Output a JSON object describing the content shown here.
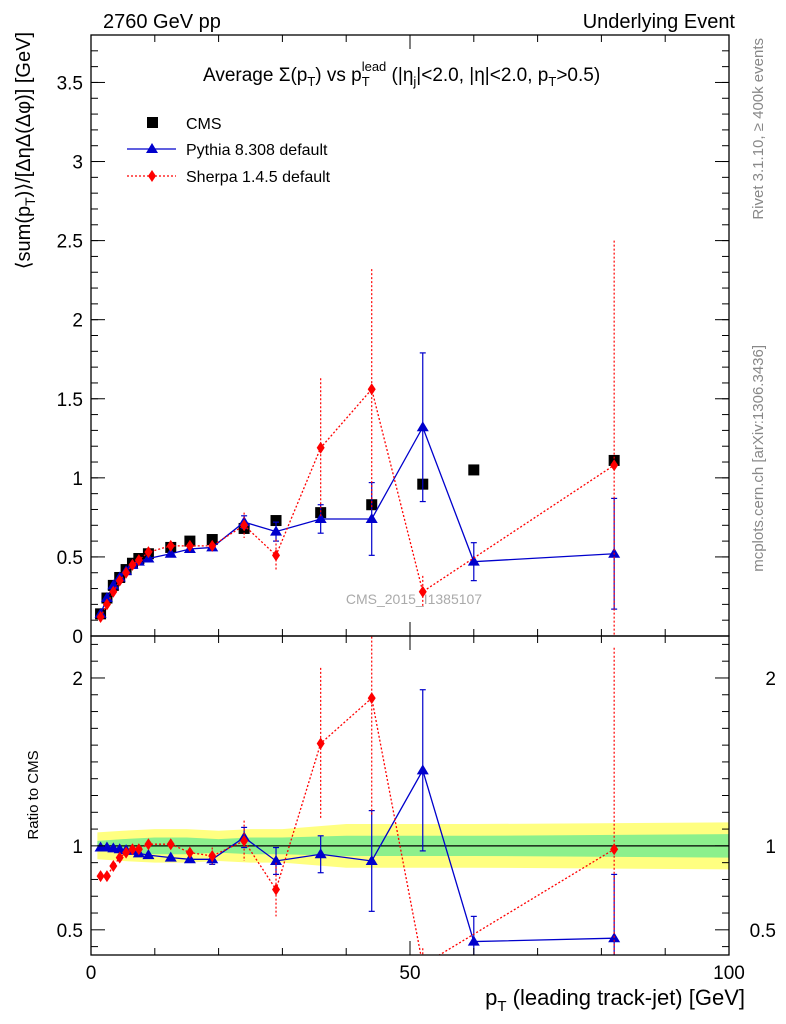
{
  "header": {
    "left": "2760 GeV pp",
    "right": "Underlying Event"
  },
  "side_labels": {
    "rivet": "Rivet 3.1.10, ≥ 400k events",
    "mcplots": "mcplots.cern.ch [arXiv:1306.3436]"
  },
  "watermark": "CMS_2015_I1385107",
  "chart_data": [
    {
      "type": "scatter",
      "title": "Average Σ(pT) vs pT lead (|ηj|<2.0, |η|<2.0, pT>0.5)",
      "ylabel": "⟨sum(pT)⟩/[ΔηΔ(Δφ)] [GeV]",
      "xlabel": "pT (leading track-jet) [GeV]",
      "xlim": [
        0,
        100
      ],
      "ylim": [
        0,
        3.8
      ],
      "y_ticks": [
        "0",
        "0.5",
        "1",
        "1.5",
        "2",
        "2.5",
        "3",
        "3.5"
      ],
      "x_ticks": [
        "0",
        "50",
        "100"
      ],
      "legend": [
        "CMS",
        "Pythia 8.308 default",
        "Sherpa 1.4.5 default"
      ],
      "legend_position": "top-left",
      "series": [
        {
          "name": "CMS",
          "color": "#000000",
          "marker": "square",
          "x": [
            1.5,
            2.5,
            3.5,
            4.5,
            5.5,
            6.5,
            7.5,
            9.0,
            12.5,
            15.5,
            19.0,
            24.0,
            29.0,
            36.0,
            44.0,
            52.0,
            60.0,
            82.0
          ],
          "y": [
            0.14,
            0.24,
            0.32,
            0.37,
            0.42,
            0.46,
            0.49,
            0.52,
            0.56,
            0.6,
            0.61,
            0.68,
            0.73,
            0.78,
            0.83,
            0.96,
            1.05,
            1.11
          ]
        },
        {
          "name": "Pythia 8.308 default",
          "color": "#0000cc",
          "marker": "triangle",
          "line": "solid",
          "x": [
            1.5,
            2.5,
            3.5,
            4.5,
            5.5,
            6.5,
            7.5,
            9.0,
            12.5,
            15.5,
            19.0,
            24.0,
            29.0,
            36.0,
            44.0,
            52.0,
            60.0,
            82.0
          ],
          "y": [
            0.14,
            0.24,
            0.32,
            0.37,
            0.41,
            0.45,
            0.47,
            0.49,
            0.52,
            0.55,
            0.56,
            0.72,
            0.66,
            0.74,
            0.74,
            1.32,
            0.47,
            0.52
          ],
          "err": [
            0.005,
            0.005,
            0.005,
            0.005,
            0.005,
            0.005,
            0.01,
            0.01,
            0.01,
            0.01,
            0.015,
            0.04,
            0.06,
            0.09,
            0.23,
            0.47,
            0.12,
            0.35
          ]
        },
        {
          "name": "Sherpa 1.4.5 default",
          "color": "#ff0000",
          "marker": "diamond",
          "line": "dotted",
          "x": [
            1.5,
            2.5,
            3.5,
            4.5,
            5.5,
            6.5,
            7.5,
            9.0,
            12.5,
            15.5,
            19.0,
            24.0,
            29.0,
            36.0,
            44.0,
            52.0,
            82.0
          ],
          "y": [
            0.12,
            0.2,
            0.28,
            0.35,
            0.4,
            0.45,
            0.48,
            0.53,
            0.57,
            0.57,
            0.57,
            0.7,
            0.51,
            1.19,
            1.56,
            0.28,
            1.08
          ],
          "err": [
            0.005,
            0.005,
            0.005,
            0.005,
            0.005,
            0.01,
            0.01,
            0.01,
            0.02,
            0.02,
            0.03,
            0.08,
            0.1,
            0.44,
            0.76,
            0.1,
            1.42
          ]
        }
      ]
    },
    {
      "type": "scatter",
      "ylabel": "Ratio to CMS",
      "xlabel": "pT (leading track-jet) [GeV]",
      "xlim": [
        0,
        100
      ],
      "ylim": [
        0.35,
        2.25
      ],
      "y_ticks": [
        "0.5",
        "1",
        "2"
      ],
      "x_ticks": [
        "0",
        "50",
        "100"
      ],
      "bands": [
        {
          "name": "yellow",
          "color": "#ffff80",
          "x": [
            1,
            5,
            10,
            15,
            20,
            25,
            30,
            40,
            50,
            60,
            100
          ],
          "half": [
            0.08,
            0.09,
            0.1,
            0.1,
            0.09,
            0.1,
            0.1,
            0.13,
            0.13,
            0.13,
            0.14
          ]
        },
        {
          "name": "green",
          "color": "#8cf08c",
          "x": [
            1,
            5,
            10,
            15,
            20,
            25,
            30,
            40,
            50,
            60,
            100
          ],
          "half": [
            0.03,
            0.04,
            0.05,
            0.05,
            0.04,
            0.05,
            0.05,
            0.06,
            0.06,
            0.06,
            0.07
          ]
        }
      ],
      "series": [
        {
          "name": "Pythia 8.308 default",
          "color": "#0000cc",
          "marker": "triangle",
          "line": "solid",
          "x": [
            1.5,
            2.5,
            3.5,
            4.5,
            5.5,
            6.5,
            7.5,
            9.0,
            12.5,
            15.5,
            19.0,
            24.0,
            29.0,
            36.0,
            44.0,
            52.0,
            60.0,
            82.0
          ],
          "y": [
            0.99,
            0.99,
            0.985,
            0.98,
            0.975,
            0.97,
            0.955,
            0.945,
            0.93,
            0.92,
            0.92,
            1.05,
            0.91,
            0.95,
            0.91,
            1.45,
            0.43,
            0.45
          ],
          "err": [
            0.01,
            0.01,
            0.01,
            0.01,
            0.01,
            0.01,
            0.01,
            0.015,
            0.02,
            0.02,
            0.03,
            0.06,
            0.08,
            0.11,
            0.3,
            0.48,
            0.15,
            0.38
          ]
        },
        {
          "name": "Sherpa 1.4.5 default",
          "color": "#ff0000",
          "marker": "diamond",
          "line": "dotted",
          "x": [
            1.5,
            2.5,
            3.5,
            4.5,
            5.5,
            6.5,
            7.5,
            9.0,
            12.5,
            15.5,
            19.0,
            24.0,
            29.0,
            36.0,
            44.0,
            52.0,
            82.0
          ],
          "y": [
            0.82,
            0.82,
            0.88,
            0.93,
            0.96,
            0.98,
            0.98,
            1.01,
            1.01,
            0.96,
            0.94,
            1.03,
            0.74,
            1.61,
            1.88,
            0.29,
            0.98
          ],
          "err": [
            0.01,
            0.01,
            0.01,
            0.01,
            0.01,
            0.015,
            0.015,
            0.02,
            0.03,
            0.03,
            0.05,
            0.12,
            0.16,
            0.45,
            0.7,
            0.1,
            1.2
          ]
        }
      ]
    }
  ]
}
